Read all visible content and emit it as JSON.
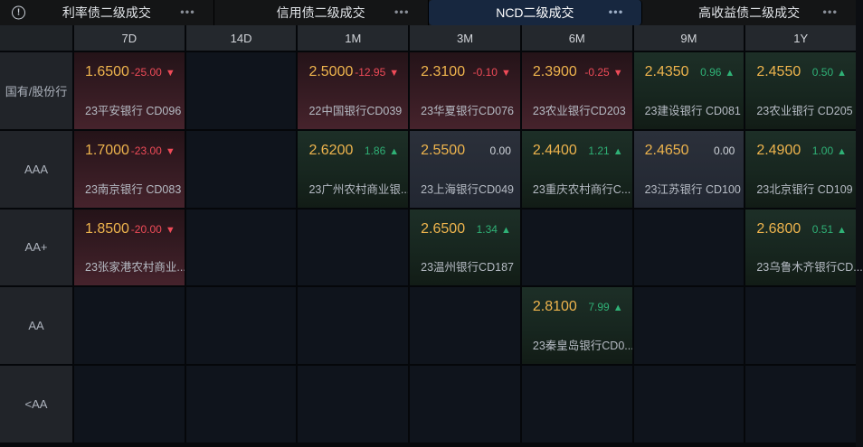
{
  "icons": {
    "info": "!",
    "more": "•••",
    "up_arrow": "▲",
    "down_arrow": "▼"
  },
  "colors": {
    "value_gold": "#eeb44d",
    "down_red": "#ef4b58",
    "up_green": "#2fb176",
    "active_tab_bg": "#17273f",
    "red_cell_bg": "#46232c",
    "green_cell_bg": "#1d2f27",
    "flat_cell_bg": "#2b303a"
  },
  "tabs": [
    {
      "label": "利率债二级成交",
      "active": false
    },
    {
      "label": "信用债二级成交",
      "active": false
    },
    {
      "label": "NCD二级成交",
      "active": true
    },
    {
      "label": "高收益债二级成交",
      "active": false
    }
  ],
  "table": {
    "columns": [
      "7D",
      "14D",
      "1M",
      "3M",
      "6M",
      "9M",
      "1Y"
    ],
    "rows": [
      {
        "label": "国有/股份行",
        "cells": [
          {
            "value": "1.6500",
            "change": "-25.00",
            "dir": "down",
            "name": "23平安银行 CD096"
          },
          null,
          {
            "value": "2.5000",
            "change": "-12.95",
            "dir": "down",
            "name": "22中国银行CD039"
          },
          {
            "value": "2.3100",
            "change": "-0.10",
            "dir": "down",
            "name": "23华夏银行CD076"
          },
          {
            "value": "2.3900",
            "change": "-0.25",
            "dir": "down",
            "name": "23农业银行CD203"
          },
          {
            "value": "2.4350",
            "change": "0.96",
            "dir": "up",
            "name": "23建设银行 CD081"
          },
          {
            "value": "2.4550",
            "change": "0.50",
            "dir": "up",
            "name": "23农业银行 CD205"
          }
        ]
      },
      {
        "label": "AAA",
        "cells": [
          {
            "value": "1.7000",
            "change": "-23.00",
            "dir": "down",
            "name": "23南京银行 CD083"
          },
          null,
          {
            "value": "2.6200",
            "change": "1.86",
            "dir": "up",
            "name": "23广州农村商业银..."
          },
          {
            "value": "2.5500",
            "change": "0.00",
            "dir": "flat",
            "name": "23上海银行CD049"
          },
          {
            "value": "2.4400",
            "change": "1.21",
            "dir": "up",
            "name": "23重庆农村商行C..."
          },
          {
            "value": "2.4650",
            "change": "0.00",
            "dir": "flat",
            "name": "23江苏银行 CD100"
          },
          {
            "value": "2.4900",
            "change": "1.00",
            "dir": "up",
            "name": "23北京银行 CD109"
          }
        ]
      },
      {
        "label": "AA+",
        "cells": [
          {
            "value": "1.8500",
            "change": "-20.00",
            "dir": "down",
            "name": "23张家港农村商业..."
          },
          null,
          null,
          {
            "value": "2.6500",
            "change": "1.34",
            "dir": "up",
            "name": "23温州银行CD187"
          },
          null,
          null,
          {
            "value": "2.6800",
            "change": "0.51",
            "dir": "up",
            "name": "23乌鲁木齐银行CD..."
          }
        ]
      },
      {
        "label": "AA",
        "cells": [
          null,
          null,
          null,
          null,
          {
            "value": "2.8100",
            "change": "7.99",
            "dir": "up",
            "name": "23秦皇岛银行CD0..."
          },
          null,
          null
        ]
      },
      {
        "label": "<AA",
        "cells": [
          null,
          null,
          null,
          null,
          null,
          null,
          null
        ]
      }
    ]
  }
}
